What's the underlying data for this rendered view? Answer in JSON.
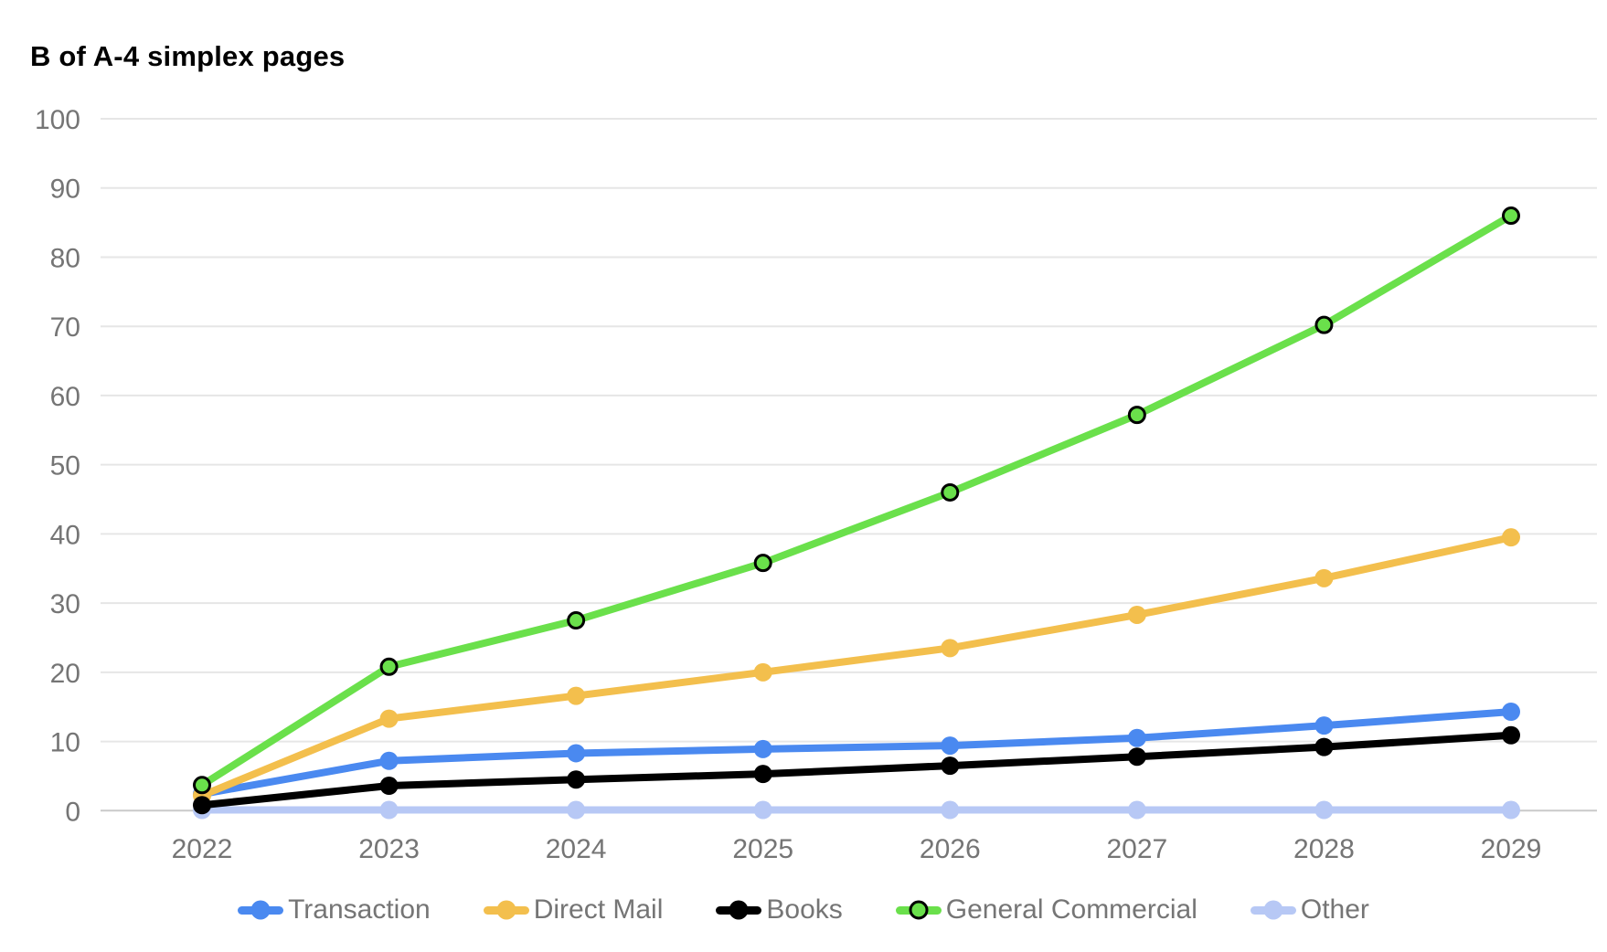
{
  "chart_data": {
    "type": "line",
    "title": "B of A-4 simplex pages",
    "categories": [
      "2022",
      "2023",
      "2024",
      "2025",
      "2026",
      "2027",
      "2028",
      "2029"
    ],
    "series": [
      {
        "name": "Transaction",
        "color": "#4a89f0",
        "values": [
          2.4,
          7.2,
          8.3,
          8.9,
          9.4,
          10.5,
          12.3,
          14.3
        ]
      },
      {
        "name": "Direct Mail",
        "color": "#f3bf4d",
        "values": [
          2.2,
          13.3,
          16.6,
          20.0,
          23.5,
          28.3,
          33.6,
          39.5
        ]
      },
      {
        "name": "Books",
        "color": "#000000",
        "values": [
          0.8,
          3.6,
          4.5,
          5.3,
          6.5,
          7.8,
          9.2,
          10.9
        ]
      },
      {
        "name": "General Commercial",
        "color": "#6ae04b",
        "marker_outline": "#000000",
        "values": [
          3.7,
          20.8,
          27.5,
          35.8,
          46.0,
          57.2,
          70.2,
          86.0
        ]
      },
      {
        "name": "Other",
        "color": "#b7c8f5",
        "values": [
          0.1,
          0.1,
          0.1,
          0.1,
          0.1,
          0.1,
          0.1,
          0.1
        ]
      }
    ],
    "xlabel": "",
    "ylabel": "",
    "ylim": [
      0,
      100
    ],
    "yticks": [
      0,
      10,
      20,
      30,
      40,
      50,
      60,
      70,
      80,
      90,
      100
    ],
    "grid": true,
    "legend_position": "bottom",
    "draw_order": [
      4,
      0,
      1,
      2,
      3
    ],
    "axis_text_color": "#757575",
    "gridline_color": "#e6e6e6",
    "baseline_color": "#c9c9c9",
    "background_color": "#ffffff"
  }
}
